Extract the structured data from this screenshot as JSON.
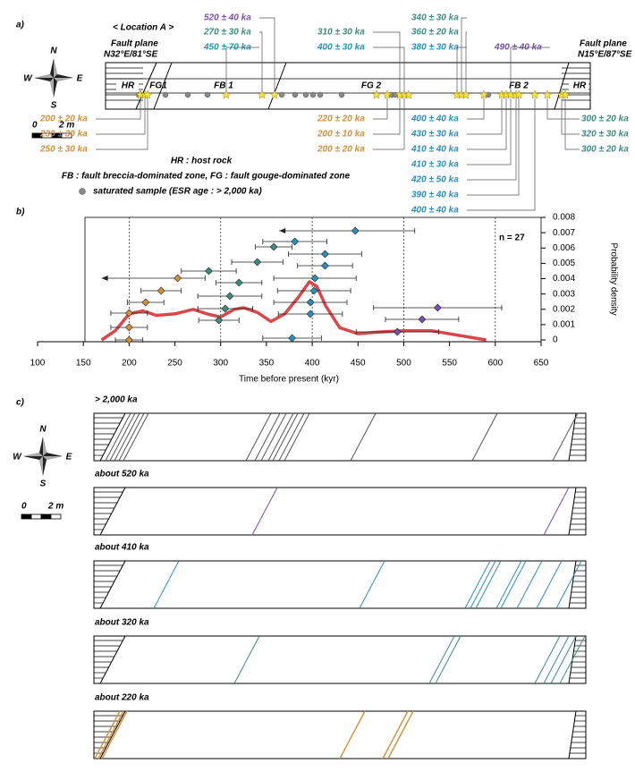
{
  "panel_a": {
    "label": "a)",
    "location": "< Location A >",
    "compass": {
      "n": "N",
      "e": "E",
      "s": "S",
      "w": "W"
    },
    "scale": {
      "zero": "0",
      "length": "2 m"
    },
    "fault_left": {
      "title": "Fault plane",
      "orientation": "N32°E/81°SE"
    },
    "fault_right": {
      "title": "Fault plane",
      "orientation": "N15°E/87°SE"
    },
    "zones": [
      "HR",
      "FG1",
      "FB 1",
      "FG 2",
      "FB 2",
      "HR"
    ],
    "ages": [
      {
        "text": "520 ± 40 ka",
        "color": "#7b4fb0"
      },
      {
        "text": "270 ± 30 ka",
        "color": "#3d8c7f"
      },
      {
        "text": "450 ± 70 ka",
        "color": "#2a8fc1"
      },
      {
        "text": "310 ± 30 ka",
        "color": "#3d8c7f"
      },
      {
        "text": "400 ± 30 ka",
        "color": "#2a8fc1"
      },
      {
        "text": "340 ± 30 ka",
        "color": "#3d8c7f"
      },
      {
        "text": "360 ± 20 ka",
        "color": "#3d8c7f"
      },
      {
        "text": "380 ± 30 ka",
        "color": "#2a8fc1"
      },
      {
        "text": "490 ± 40 ka",
        "color": "#7b4fb0"
      },
      {
        "text": "200 ± 20 ka",
        "color": "#d4903a"
      },
      {
        "text": "230 ± 30 ka",
        "color": "#d4903a"
      },
      {
        "text": "250 ± 30 ka",
        "color": "#d4903a"
      },
      {
        "text": "220 ± 20 ka",
        "color": "#d4903a"
      },
      {
        "text": "200 ± 10 ka",
        "color": "#d4903a"
      },
      {
        "text": "200 ± 20 ka",
        "color": "#d4903a"
      },
      {
        "text": "400 ± 40 ka",
        "color": "#2a8fc1"
      },
      {
        "text": "430 ± 30 ka",
        "color": "#2a8fc1"
      },
      {
        "text": "410 ± 40 ka",
        "color": "#2a8fc1"
      },
      {
        "text": "410 ± 30 ka",
        "color": "#2a8fc1"
      },
      {
        "text": "420 ± 50 ka",
        "color": "#2a8fc1"
      },
      {
        "text": "390 ± 40 ka",
        "color": "#2a8fc1"
      },
      {
        "text": "400 ± 40 ka",
        "color": "#2a8fc1"
      },
      {
        "text": "300 ± 20 ka",
        "color": "#3d8c7f"
      },
      {
        "text": "320 ± 30 ka",
        "color": "#3d8c7f"
      },
      {
        "text": "300 ± 20 ka",
        "color": "#3d8c7f"
      }
    ],
    "legend": [
      "HR : host rock",
      "FB : fault breccia-dominated zone, FG : fault gouge-dominated zone",
      "saturated sample (ESR age : > 2,000 ka)"
    ]
  },
  "chart_data": {
    "type": "errorbar",
    "label": "b)",
    "annotation": "n = 27",
    "x_label": "Time before present (kyr)",
    "y2_label": "Probability density",
    "xlim": [
      100,
      650
    ],
    "xticks": [
      100,
      150,
      200,
      250,
      300,
      350,
      400,
      450,
      500,
      550,
      600,
      650
    ],
    "y2lim": [
      0,
      0.008
    ],
    "y2ticks": [
      0,
      0.001,
      0.002,
      0.003,
      0.004,
      0.005,
      0.006,
      0.007,
      0.008
    ],
    "reference_lines": [
      200,
      300,
      400,
      500,
      600
    ],
    "ages": {
      "values": [
        200,
        378,
        493,
        200,
        520,
        298,
        398,
        200,
        305,
        537,
        218,
        398,
        310,
        235,
        402,
        320,
        253,
        403,
        287,
        414,
        340,
        414,
        358,
        381,
        447
      ],
      "errors": [
        15,
        32,
        45,
        20,
        40,
        22,
        35,
        20,
        30,
        70,
        20,
        40,
        35,
        22,
        40,
        25,
        30,
        45,
        30,
        30,
        28,
        40,
        20,
        35,
        65
      ],
      "colors": [
        "#d4903a",
        "#2a8fc1",
        "#7b4fb0",
        "#d4903a",
        "#7b4fb0",
        "#3d8c7f",
        "#2a8fc1",
        "#d4903a",
        "#3d8c7f",
        "#7b4fb0",
        "#d4903a",
        "#2a8fc1",
        "#3d8c7f",
        "#d4903a",
        "#2a8fc1",
        "#3d8c7f",
        "#d4903a",
        "#2a8fc1",
        "#3d8c7f",
        "#2a8fc1",
        "#3d8c7f",
        "#2a8fc1",
        "#3d8c7f",
        "#2a8fc1",
        "#2a8fc1"
      ],
      "left_arrow": [
        false,
        false,
        false,
        false,
        false,
        false,
        false,
        false,
        false,
        false,
        false,
        false,
        false,
        false,
        false,
        false,
        true,
        false,
        false,
        false,
        false,
        false,
        false,
        false,
        true
      ]
    },
    "density": {
      "axis": "y2",
      "color": "#d9474a",
      "x": [
        170,
        185,
        200,
        215,
        230,
        250,
        270,
        285,
        300,
        315,
        325,
        340,
        355,
        370,
        385,
        397,
        405,
        415,
        430,
        450,
        470,
        500,
        530,
        560,
        590
      ],
      "values": [
        0,
        0.0006,
        0.0017,
        0.0019,
        0.0016,
        0.0017,
        0.002,
        0.0017,
        0.0015,
        0.002,
        0.0021,
        0.0018,
        0.0012,
        0.0017,
        0.0028,
        0.0038,
        0.0035,
        0.0022,
        0.0008,
        0.0004,
        0.0005,
        0.0006,
        0.0006,
        0.0003,
        0
      ]
    }
  },
  "panel_c": {
    "label": "c)",
    "compass": {
      "n": "N",
      "e": "E",
      "s": "S",
      "w": "W"
    },
    "scale": {
      "zero": "0",
      "length": "2 m"
    },
    "strips": [
      {
        "title": "> 2,000 ka",
        "color": "#555555"
      },
      {
        "title": "about 520 ka",
        "color": "#7b4fb0"
      },
      {
        "title": "about 410 ka",
        "color": "#2a8fc1"
      },
      {
        "title": "about 320 ka",
        "color": "#3d8c7f"
      },
      {
        "title": "about 220 ka",
        "color": "#d4903a"
      }
    ]
  }
}
